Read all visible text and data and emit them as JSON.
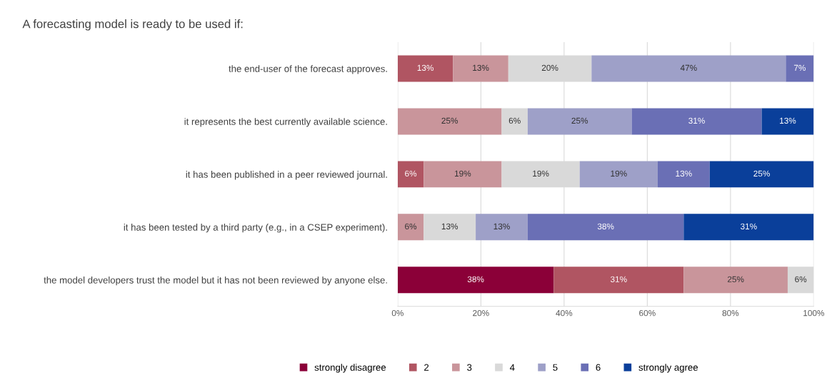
{
  "chart_data": {
    "type": "bar",
    "orientation": "horizontal",
    "stacked": true,
    "title": "A forecasting model is ready to be used if:",
    "categories": [
      "the end-user of the forecast approves.",
      "it represents the best currently available science.",
      "it has been published in a peer reviewed journal.",
      "it has been tested by a third party (e.g., in a CSEP experiment).",
      "the model developers trust the model but it has not been reviewed by anyone else."
    ],
    "series": [
      {
        "name": "strongly disagree",
        "color": "#8b0038",
        "values": [
          null,
          null,
          null,
          null,
          37.5
        ],
        "value_labels": [
          null,
          null,
          null,
          null,
          "38%"
        ]
      },
      {
        "name": "2",
        "color": "#b05562",
        "values": [
          13.3,
          null,
          6.25,
          null,
          31.25
        ],
        "value_labels": [
          "13%",
          null,
          "6%",
          null,
          "31%"
        ]
      },
      {
        "name": "3",
        "color": "#c9959b",
        "values": [
          13.3,
          25,
          18.75,
          6.25,
          25
        ],
        "value_labels": [
          "13%",
          "25%",
          "19%",
          "6%",
          "25%"
        ]
      },
      {
        "name": "4",
        "color": "#d9d9d9",
        "values": [
          20,
          6.25,
          18.75,
          12.5,
          6.25
        ],
        "value_labels": [
          "20%",
          "6%",
          "19%",
          "13%",
          "6%"
        ]
      },
      {
        "name": "5",
        "color": "#9ea0c8",
        "values": [
          46.7,
          25,
          18.75,
          12.5,
          null
        ],
        "value_labels": [
          "47%",
          "25%",
          "19%",
          "13%",
          null
        ]
      },
      {
        "name": "6",
        "color": "#6a6fb5",
        "values": [
          6.7,
          31.25,
          12.5,
          37.5,
          null
        ],
        "value_labels": [
          "7%",
          "31%",
          "13%",
          "38%",
          null
        ]
      },
      {
        "name": "strongly agree",
        "color": "#0a3f9a",
        "values": [
          null,
          12.5,
          25,
          31.25,
          null
        ],
        "value_labels": [
          null,
          "13%",
          "25%",
          "31%",
          null
        ]
      }
    ],
    "xlim": [
      0,
      100
    ],
    "xticks": [
      {
        "value": 0,
        "label": "0%"
      },
      {
        "value": 20,
        "label": "20%"
      },
      {
        "value": 40,
        "label": "40%"
      },
      {
        "value": 60,
        "label": "60%"
      },
      {
        "value": 80,
        "label": "80%"
      },
      {
        "value": 100,
        "label": "100%"
      }
    ],
    "grid": "x",
    "legend": "bottom"
  }
}
